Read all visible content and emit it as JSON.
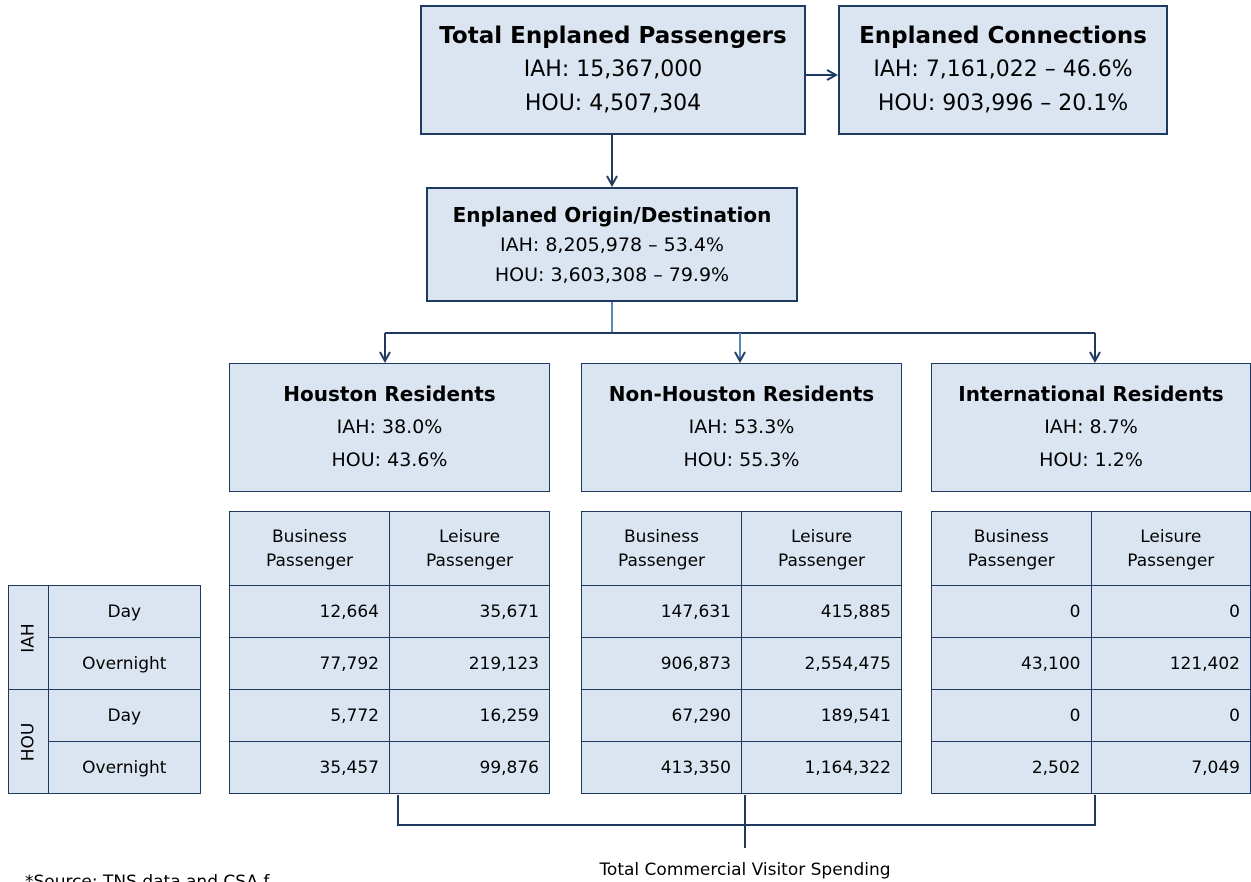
{
  "nodes": [
    {
      "title": "Total Enplaned Passengers",
      "lines": [
        "IAH: 15,367,000",
        "HOU: 4,507,304"
      ]
    },
    {
      "title": "Enplaned Connections",
      "lines": [
        "IAH: 7,161,022 – 46.6%",
        "HOU: 903,996 – 20.1%"
      ]
    },
    {
      "title": "Enplaned Origin/Destination",
      "lines": [
        "IAH: 8,205,978 – 53.4%",
        "HOU: 3,603,308 – 79.9%"
      ]
    },
    {
      "title": "Houston Residents",
      "lines": [
        "IAH: 38.0%",
        "HOU: 43.6%"
      ]
    },
    {
      "title": "Non-Houston Residents",
      "lines": [
        "IAH: 53.3%",
        "HOU: 55.3%"
      ]
    },
    {
      "title": "International Residents",
      "lines": [
        "IAH: 8.7%",
        "HOU: 1.2%"
      ]
    }
  ],
  "tables": [
    {
      "headers": [
        "Business Passenger",
        "Leisure Passenger"
      ],
      "rows": [
        [
          "12,664",
          "35,671"
        ],
        [
          "77,792",
          "219,123"
        ],
        [
          "5,772",
          "16,259"
        ],
        [
          "35,457",
          "99,876"
        ]
      ]
    },
    {
      "headers": [
        "Business Passenger",
        "Leisure Passenger"
      ],
      "rows": [
        [
          "147,631",
          "415,885"
        ],
        [
          "906,873",
          "2,554,475"
        ],
        [
          "67,290",
          "189,541"
        ],
        [
          "413,350",
          "1,164,322"
        ]
      ]
    },
    {
      "headers": [
        "Business Passenger",
        "Leisure Passenger"
      ],
      "rows": [
        [
          "0",
          "0"
        ],
        [
          "43,100",
          "121,402"
        ],
        [
          "0",
          "0"
        ],
        [
          "2,502",
          "7,049"
        ]
      ]
    }
  ],
  "row_labels": [
    {
      "airport": "IAH",
      "rows": [
        "Day",
        "Overnight"
      ]
    },
    {
      "airport": "HOU",
      "rows": [
        "Day",
        "Overnight"
      ]
    }
  ],
  "footer": "Total Commercial Visitor Spending",
  "footnote": "*Source: TNS data and CSA f"
}
